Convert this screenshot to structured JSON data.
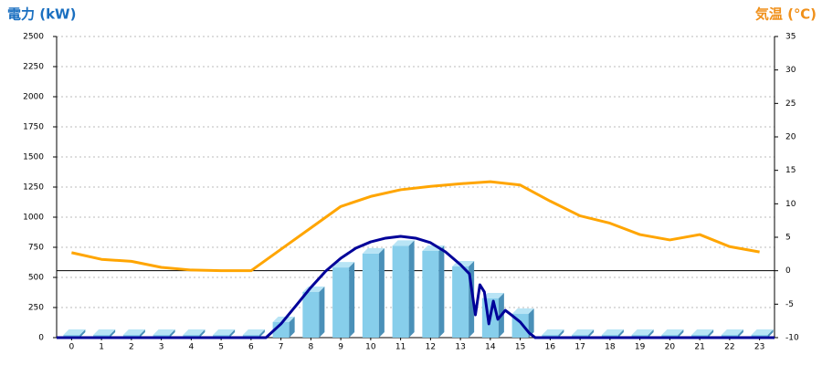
{
  "chart_data": {
    "type": "combo",
    "y_title": "電力 (kW)",
    "y2_title": "気温 (℃)",
    "categories": [
      "0",
      "1",
      "2",
      "3",
      "4",
      "5",
      "6",
      "7",
      "8",
      "9",
      "10",
      "11",
      "12",
      "13",
      "14",
      "15",
      "16",
      "17",
      "18",
      "19",
      "20",
      "21",
      "22",
      "23"
    ],
    "ylim": [
      0,
      2500
    ],
    "yticks": [
      0,
      250,
      500,
      750,
      1000,
      1250,
      1500,
      1750,
      2000,
      2250,
      2500
    ],
    "y2lim": [
      -10,
      35
    ],
    "y2ticks": [
      -10,
      -5,
      0,
      5,
      10,
      15,
      20,
      25,
      30,
      35
    ],
    "grid": true,
    "series": [
      {
        "kind": "bar",
        "color": "#87ceeb",
        "values": [
          0,
          0,
          0,
          0,
          0,
          0,
          0,
          106,
          356,
          560,
          675,
          740,
          697,
          568,
          303,
          174,
          0,
          0,
          0,
          0,
          0,
          0,
          0,
          0
        ]
      },
      {
        "kind": "line",
        "axis": "y2",
        "color": "#ffa500",
        "values": [
          2.7,
          1.7,
          1.4,
          0.5,
          0.1,
          0,
          0,
          3.2,
          6.4,
          9.6,
          11.1,
          12.1,
          12.6,
          13.0,
          13.3,
          12.8,
          10.4,
          8.2,
          7.1,
          5.4,
          4.6,
          5.4,
          3.6,
          2.8
        ]
      },
      {
        "kind": "line",
        "color": "#000099",
        "x": [
          -0.5,
          6.5,
          7,
          7.5,
          8,
          8.5,
          9,
          9.5,
          10,
          10.5,
          11,
          11.5,
          12,
          12.5,
          13,
          13.3,
          13.5,
          13.65,
          13.8,
          13.95,
          14.1,
          14.25,
          14.5,
          14.7,
          15,
          15.3,
          15.5,
          23.5
        ],
        "values": [
          0,
          0,
          114,
          265,
          417,
          553,
          659,
          742,
          795,
          826,
          841,
          826,
          788,
          712,
          606,
          530,
          189,
          439,
          379,
          114,
          303,
          152,
          227,
          189,
          129,
          38,
          0,
          0
        ]
      }
    ]
  }
}
